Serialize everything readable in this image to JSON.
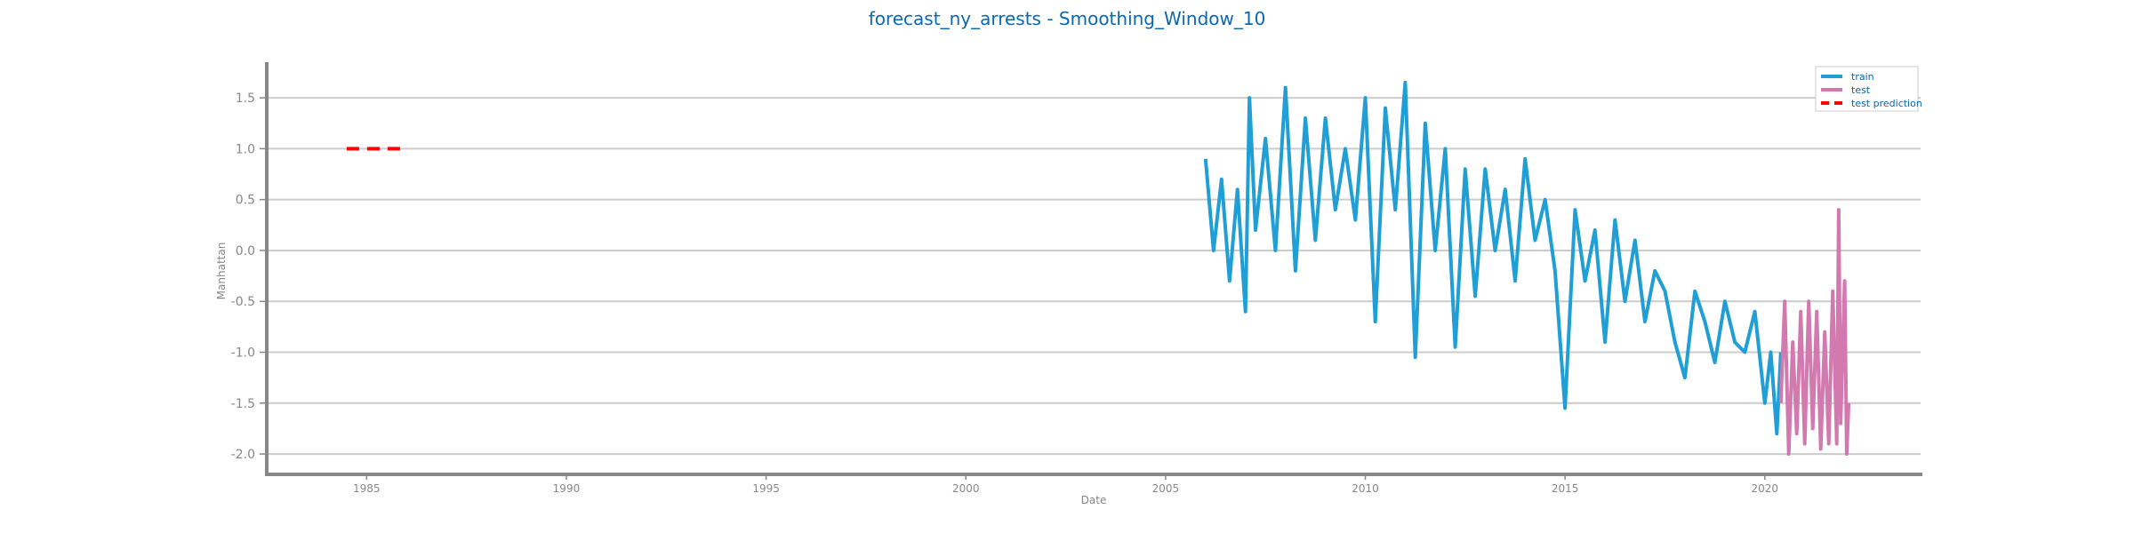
{
  "chart_data": {
    "type": "line",
    "title": "forecast_ny_arrests - Smoothing_Window_10",
    "xlabel": "Date",
    "ylabel": "Manhattan",
    "xlim": [
      1982.5,
      2023.9
    ],
    "ylim": [
      -2.2,
      1.85
    ],
    "x_ticks": [
      1985,
      1990,
      1995,
      2000,
      2005,
      2010,
      2015,
      2020
    ],
    "y_ticks": [
      -2.0,
      -1.5,
      -1.0,
      -0.5,
      0.0,
      0.5,
      1.0,
      1.5
    ],
    "grid": "horizontal",
    "legend_position": "top-right",
    "colors": {
      "train": "#1f9fd6",
      "test": "#d27aaf",
      "test_prediction": "#ff0000",
      "title": "#0b67b0",
      "axis": "#888888",
      "grid": "#cccccc"
    },
    "series": [
      {
        "name": "train",
        "style": "solid",
        "x": [
          2006.0,
          2006.2,
          2006.4,
          2006.6,
          2006.8,
          2007.0,
          2007.1,
          2007.25,
          2007.5,
          2007.75,
          2008.0,
          2008.25,
          2008.5,
          2008.75,
          2009.0,
          2009.25,
          2009.5,
          2009.75,
          2010.0,
          2010.25,
          2010.5,
          2010.75,
          2011.0,
          2011.25,
          2011.5,
          2011.75,
          2012.0,
          2012.25,
          2012.5,
          2012.75,
          2013.0,
          2013.25,
          2013.5,
          2013.75,
          2014.0,
          2014.25,
          2014.5,
          2014.75,
          2015.0,
          2015.25,
          2015.5,
          2015.75,
          2016.0,
          2016.25,
          2016.5,
          2016.75,
          2017.0,
          2017.25,
          2017.5,
          2017.75,
          2018.0,
          2018.25,
          2018.5,
          2018.75,
          2019.0,
          2019.25,
          2019.5,
          2019.75,
          2020.0,
          2020.15,
          2020.3,
          2020.4
        ],
        "y": [
          0.9,
          0.0,
          0.7,
          -0.3,
          0.6,
          -0.6,
          1.5,
          0.2,
          1.1,
          0.0,
          1.6,
          -0.2,
          1.3,
          0.1,
          1.3,
          0.4,
          1.0,
          0.3,
          1.5,
          -0.7,
          1.4,
          0.4,
          1.65,
          -1.05,
          1.25,
          0.0,
          1.0,
          -0.95,
          0.8,
          -0.45,
          0.8,
          0.0,
          0.6,
          -0.3,
          0.9,
          0.1,
          0.5,
          -0.2,
          -1.55,
          0.4,
          -0.3,
          0.2,
          -0.9,
          0.3,
          -0.5,
          0.1,
          -0.7,
          -0.2,
          -0.4,
          -0.9,
          -1.25,
          -0.4,
          -0.7,
          -1.1,
          -0.5,
          -0.9,
          -1.0,
          -0.6,
          -1.5,
          -1.0,
          -1.8,
          -1.0
        ]
      },
      {
        "name": "test",
        "style": "solid",
        "x": [
          2020.4,
          2020.5,
          2020.6,
          2020.7,
          2020.8,
          2020.9,
          2021.0,
          2021.1,
          2021.2,
          2021.3,
          2021.4,
          2021.5,
          2021.6,
          2021.7,
          2021.8,
          2021.85,
          2021.9,
          2022.0,
          2022.05,
          2022.1
        ],
        "y": [
          -1.5,
          -0.5,
          -2.0,
          -0.9,
          -1.8,
          -0.6,
          -1.9,
          -0.5,
          -1.75,
          -0.6,
          -1.95,
          -0.8,
          -1.9,
          -0.4,
          -1.9,
          0.4,
          -1.7,
          -0.3,
          -2.0,
          -1.5
        ]
      },
      {
        "name": "test prediction",
        "style": "dashed",
        "x": [
          1984.5,
          1986.0
        ],
        "y": [
          1.0,
          1.0
        ]
      }
    ]
  }
}
